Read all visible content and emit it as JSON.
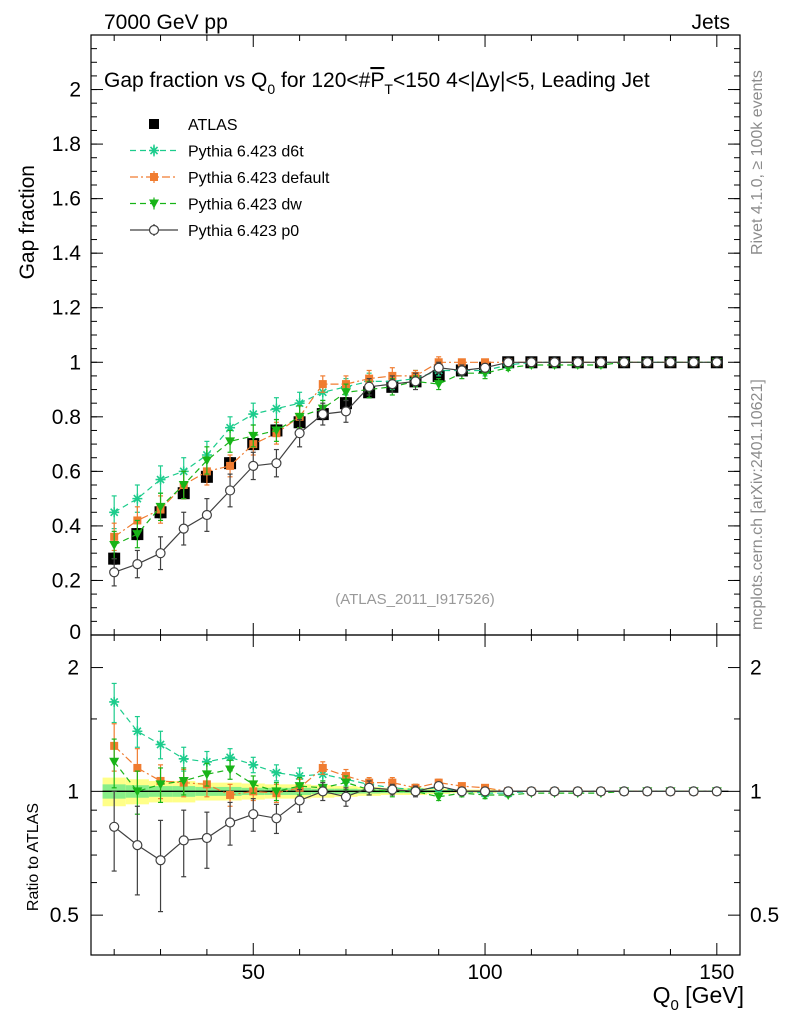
{
  "header": {
    "left": "7000 GeV pp",
    "right": "Jets"
  },
  "side_labels": {
    "rivet": "Rivet 4.1.0, ≥ 100k events",
    "mcplots": "mcplots.cern.ch [arXiv:2401.10621]"
  },
  "watermark": "(ATLAS_2011_I917526)",
  "colors": {
    "atlas": "#000000",
    "d6t": "#1ccc8c",
    "default": "#f07c30",
    "dw": "#18b418",
    "p0": "#404040",
    "band_yellow": "#ffff88",
    "band_green": "#88ee88"
  },
  "chart_data": [
    {
      "type": "scatter",
      "panel": "main",
      "title": "Gap fraction vs Q0 for 120<#PT<150  4<|Δy|<5, Leading Jet",
      "title_parts": {
        "a": "Gap fraction vs Q",
        "sub": "0",
        "b": " for 120<#",
        "c": "P",
        "csub": "T",
        "d": "<150  4<|Δy|<5, Leading Jet"
      },
      "ylabel": "Gap fraction",
      "xlim": [
        15,
        155
      ],
      "ylim": [
        0,
        2.2
      ],
      "yticks": [
        0,
        0.2,
        0.4,
        0.6,
        0.8,
        1,
        1.2,
        1.4,
        1.6,
        1.8,
        2
      ],
      "ytick_labels": [
        "0",
        "0.2",
        "0.4",
        "0.6",
        "0.8",
        "1",
        "1.2",
        "1.4",
        "1.6",
        "1.8",
        "2"
      ],
      "x": [
        20,
        25,
        30,
        35,
        40,
        45,
        50,
        55,
        60,
        65,
        70,
        75,
        80,
        85,
        90,
        95,
        100,
        105,
        110,
        115,
        120,
        125,
        130,
        135,
        140,
        145,
        150
      ],
      "series": [
        {
          "name": "ATLAS",
          "key": "atlas",
          "marker": "square",
          "line": "none",
          "values": [
            0.28,
            0.37,
            0.45,
            0.52,
            0.58,
            0.63,
            0.7,
            0.75,
            0.78,
            0.81,
            0.85,
            0.89,
            0.91,
            0.93,
            0.95,
            0.97,
            0.98,
            1.0,
            1.0,
            1.0,
            1.0,
            1.0,
            1.0,
            1.0,
            1.0,
            1.0,
            1.0
          ],
          "errors": [
            0.02,
            0.02,
            0.02,
            0.02,
            0.02,
            0.02,
            0.02,
            0.02,
            0.02,
            0.02,
            0.02,
            0.02,
            0.02,
            0.02,
            0.01,
            0.01,
            0.01,
            0,
            0,
            0,
            0,
            0,
            0,
            0,
            0,
            0,
            0
          ]
        },
        {
          "name": "Pythia 6.423 d6t",
          "key": "d6t",
          "marker": "star",
          "line": "dash",
          "values": [
            0.45,
            0.5,
            0.57,
            0.6,
            0.66,
            0.76,
            0.81,
            0.83,
            0.85,
            0.89,
            0.91,
            0.93,
            0.93,
            0.94,
            0.97,
            0.97,
            0.97,
            0.99,
            1.0,
            1.0,
            1.0,
            1.0,
            1.0,
            1.0,
            1.0,
            1.0,
            1.0
          ],
          "errors": [
            0.06,
            0.05,
            0.05,
            0.05,
            0.05,
            0.04,
            0.04,
            0.04,
            0.04,
            0.03,
            0.03,
            0.03,
            0.03,
            0.03,
            0.02,
            0.02,
            0.02,
            0.01,
            0.01,
            0,
            0,
            0,
            0,
            0,
            0,
            0,
            0
          ]
        },
        {
          "name": "Pythia 6.423 default",
          "key": "default",
          "marker": "square-small",
          "line": "dashdot",
          "values": [
            0.36,
            0.42,
            0.46,
            0.55,
            0.6,
            0.62,
            0.7,
            0.74,
            0.8,
            0.92,
            0.92,
            0.94,
            0.95,
            0.95,
            1.0,
            1.0,
            1.0,
            1.0,
            1.0,
            1.0,
            1.0,
            1.0,
            1.0,
            1.0,
            1.0,
            1.0,
            1.0
          ],
          "errors": [
            0.05,
            0.05,
            0.05,
            0.05,
            0.05,
            0.04,
            0.04,
            0.04,
            0.04,
            0.03,
            0.03,
            0.03,
            0.03,
            0.02,
            0.02,
            0.01,
            0.01,
            0,
            0,
            0,
            0,
            0,
            0,
            0,
            0,
            0,
            0
          ]
        },
        {
          "name": "Pythia 6.423 dw",
          "key": "dw",
          "marker": "triangle-down",
          "line": "dash",
          "values": [
            0.33,
            0.37,
            0.47,
            0.55,
            0.64,
            0.71,
            0.73,
            0.75,
            0.8,
            0.83,
            0.89,
            0.9,
            0.91,
            0.93,
            0.92,
            0.96,
            0.96,
            0.98,
            0.99,
            0.99,
            0.99,
            0.99,
            1.0,
            1.0,
            1.0,
            1.0,
            1.0
          ],
          "errors": [
            0.05,
            0.05,
            0.05,
            0.05,
            0.05,
            0.04,
            0.04,
            0.04,
            0.04,
            0.03,
            0.03,
            0.03,
            0.03,
            0.02,
            0.02,
            0.02,
            0.02,
            0.01,
            0.01,
            0.01,
            0.01,
            0.01,
            0,
            0,
            0,
            0,
            0
          ]
        },
        {
          "name": "Pythia 6.423 p0",
          "key": "p0",
          "marker": "circle-open",
          "line": "solid",
          "values": [
            0.23,
            0.26,
            0.3,
            0.39,
            0.44,
            0.53,
            0.62,
            0.63,
            0.74,
            0.81,
            0.82,
            0.91,
            0.92,
            0.93,
            0.98,
            0.97,
            0.98,
            1.0,
            1.0,
            1.0,
            1.0,
            1.0,
            1.0,
            1.0,
            1.0,
            1.0,
            1.0
          ],
          "errors": [
            0.05,
            0.05,
            0.06,
            0.06,
            0.06,
            0.06,
            0.05,
            0.05,
            0.05,
            0.04,
            0.04,
            0.03,
            0.03,
            0.03,
            0.02,
            0.02,
            0.01,
            0.01,
            0,
            0,
            0,
            0,
            0,
            0,
            0,
            0,
            0
          ]
        }
      ]
    },
    {
      "type": "scatter",
      "panel": "ratio",
      "ylabel": "Ratio to ATLAS",
      "yscale": "log",
      "ylim": [
        0.4,
        2.4
      ],
      "yticks": [
        0.5,
        1,
        2
      ],
      "ytick_labels": [
        "0.5",
        "1",
        "2"
      ],
      "xlim": [
        15,
        155
      ],
      "xticks": [
        50,
        100,
        150
      ],
      "xtick_labels": [
        "50",
        "100",
        "150"
      ],
      "xlabel_main": "Q",
      "xlabel_sub": "0",
      "xlabel_unit": " [GeV]",
      "band_yellow_halfwidth": [
        0.08,
        0.07,
        0.06,
        0.06,
        0.05,
        0.05,
        0.045,
        0.04,
        0.04,
        0.035,
        0.03,
        0.025,
        0.02,
        0.02,
        0.015,
        0.01,
        0.01,
        0,
        0,
        0,
        0,
        0,
        0,
        0,
        0,
        0,
        0
      ],
      "band_green_halfwidth": [
        0.04,
        0.035,
        0.03,
        0.03,
        0.025,
        0.025,
        0.02,
        0.02,
        0.02,
        0.015,
        0.015,
        0.012,
        0.01,
        0.01,
        0.008,
        0.005,
        0.005,
        0,
        0,
        0,
        0,
        0,
        0,
        0,
        0,
        0,
        0
      ],
      "series": [
        {
          "name": "Pythia 6.423 d6t",
          "key": "d6t",
          "marker": "star",
          "line": "dash",
          "values": [
            1.65,
            1.4,
            1.3,
            1.2,
            1.18,
            1.21,
            1.16,
            1.11,
            1.09,
            1.1,
            1.07,
            1.04,
            1.02,
            1.01,
            1.02,
            1.0,
            0.99,
            0.99,
            1.0,
            1.0,
            1.0,
            1.0,
            1.0,
            1.0,
            1.0,
            1.0,
            1.0
          ],
          "errors": [
            0.18,
            0.12,
            0.1,
            0.08,
            0.07,
            0.06,
            0.05,
            0.05,
            0.05,
            0.04,
            0.04,
            0.03,
            0.03,
            0.03,
            0.02,
            0.02,
            0.02,
            0.01,
            0.01,
            0,
            0,
            0,
            0,
            0,
            0,
            0,
            0
          ]
        },
        {
          "name": "Pythia 6.423 default",
          "key": "default",
          "marker": "square-small",
          "line": "dashdot",
          "values": [
            1.29,
            1.14,
            1.06,
            1.05,
            1.04,
            0.98,
            1.0,
            0.99,
            1.02,
            1.14,
            1.09,
            1.05,
            1.05,
            1.02,
            1.05,
            1.03,
            1.02,
            1.0,
            1.0,
            1.0,
            1.0,
            1.0,
            1.0,
            1.0,
            1.0,
            1.0,
            1.0
          ],
          "errors": [
            0.17,
            0.13,
            0.1,
            0.08,
            0.07,
            0.06,
            0.05,
            0.05,
            0.05,
            0.04,
            0.04,
            0.03,
            0.03,
            0.02,
            0.02,
            0.01,
            0.01,
            0,
            0,
            0,
            0,
            0,
            0,
            0,
            0,
            0,
            0
          ]
        },
        {
          "name": "Pythia 6.423 dw",
          "key": "dw",
          "marker": "triangle-down",
          "line": "dash",
          "values": [
            1.18,
            1.0,
            1.04,
            1.06,
            1.1,
            1.13,
            1.04,
            1.0,
            1.03,
            1.02,
            1.05,
            1.01,
            1.0,
            1.0,
            0.97,
            0.99,
            0.98,
            0.98,
            0.99,
            0.99,
            0.99,
            0.99,
            1.0,
            1.0,
            1.0,
            1.0,
            1.0
          ],
          "errors": [
            0.16,
            0.12,
            0.1,
            0.08,
            0.07,
            0.06,
            0.05,
            0.05,
            0.05,
            0.04,
            0.04,
            0.03,
            0.03,
            0.02,
            0.02,
            0.02,
            0.02,
            0.01,
            0.01,
            0.01,
            0.01,
            0.01,
            0,
            0,
            0,
            0,
            0
          ]
        },
        {
          "name": "Pythia 6.423 p0",
          "key": "p0",
          "marker": "circle-open",
          "line": "solid",
          "values": [
            0.82,
            0.74,
            0.68,
            0.76,
            0.77,
            0.84,
            0.88,
            0.86,
            0.95,
            1.0,
            0.97,
            1.02,
            1.01,
            1.0,
            1.03,
            1.0,
            1.0,
            1.0,
            1.0,
            1.0,
            1.0,
            1.0,
            1.0,
            1.0,
            1.0,
            1.0,
            1.0
          ],
          "errors": [
            0.18,
            0.18,
            0.17,
            0.14,
            0.12,
            0.1,
            0.08,
            0.07,
            0.06,
            0.05,
            0.05,
            0.04,
            0.03,
            0.03,
            0.02,
            0.02,
            0.01,
            0.01,
            0,
            0,
            0,
            0,
            0,
            0,
            0,
            0,
            0
          ]
        }
      ]
    }
  ]
}
